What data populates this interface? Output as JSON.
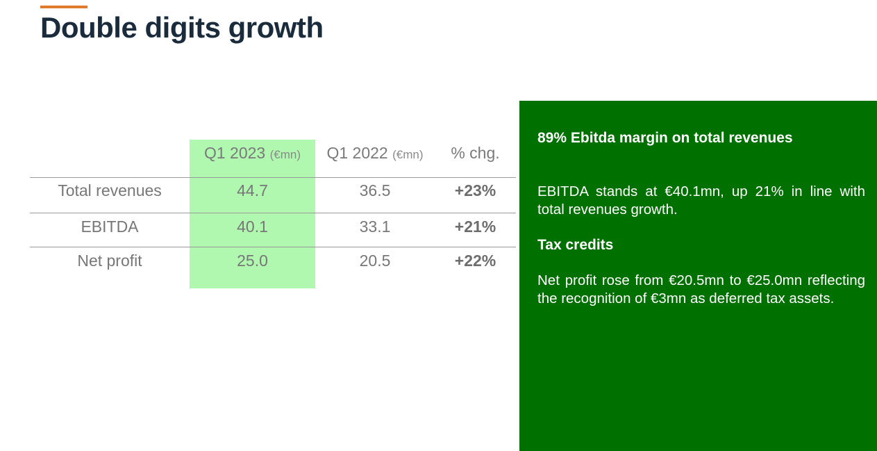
{
  "slide": {
    "title": "Double digits growth",
    "accent_color": "#e07a2e",
    "title_color": "#1a2b3c"
  },
  "table": {
    "highlight_color": "#b0f7b0",
    "headers": {
      "q1_2023": "Q1 2023",
      "q1_2023_unit": "(€mn)",
      "q1_2022": "Q1 2022",
      "q1_2022_unit": "(€mn)",
      "chg": "% chg."
    },
    "rows": [
      {
        "label": "Total revenues",
        "q1_2023": "44.7",
        "q1_2022": "36.5",
        "chg": "+23%"
      },
      {
        "label": "EBITDA",
        "q1_2023": "40.1",
        "q1_2022": "33.1",
        "chg": "+21%"
      },
      {
        "label": "Net profit",
        "q1_2023": "25.0",
        "q1_2022": "20.5",
        "chg": "+22%"
      }
    ]
  },
  "panel": {
    "background_color": "#007000",
    "heading1": "89% Ebitda margin on total revenues",
    "text1": "EBITDA stands at €40.1mn, up 21% in line with total revenues growth.",
    "heading2": "Tax credits",
    "text2": "Net profit rose from €20.5mn to €25.0mn reflecting the recognition of €3mn as deferred tax assets."
  }
}
